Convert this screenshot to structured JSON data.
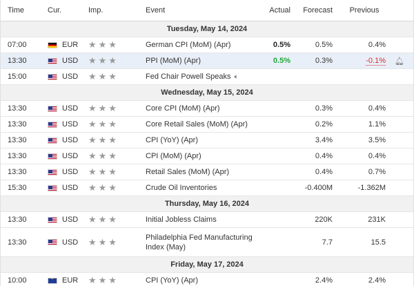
{
  "columns": {
    "time": "Time",
    "currency": "Cur.",
    "importance": "Imp.",
    "event": "Event",
    "actual": "Actual",
    "forecast": "Forecast",
    "previous": "Previous"
  },
  "stars": "★★★",
  "days": [
    {
      "label": "Tuesday, May 14, 2024",
      "events": [
        {
          "time": "07:00",
          "flag": "de",
          "currency": "EUR",
          "event": "German CPI (MoM) (Apr)",
          "actual": "0.5%",
          "forecast": "0.5%",
          "previous": "0.4%"
        },
        {
          "time": "13:30",
          "flag": "us",
          "currency": "USD",
          "event": "PPI (MoM) (Apr)",
          "actual": "0.5%",
          "forecast": "0.3%",
          "previous": "-0.1%"
        },
        {
          "time": "15:00",
          "flag": "us",
          "currency": "USD",
          "event": "Fed Chair Powell Speaks",
          "actual": "",
          "forecast": "",
          "previous": ""
        }
      ]
    },
    {
      "label": "Wednesday, May 15, 2024",
      "events": [
        {
          "time": "13:30",
          "flag": "us",
          "currency": "USD",
          "event": "Core CPI (MoM) (Apr)",
          "actual": "",
          "forecast": "0.3%",
          "previous": "0.4%"
        },
        {
          "time": "13:30",
          "flag": "us",
          "currency": "USD",
          "event": "Core Retail Sales (MoM) (Apr)",
          "actual": "",
          "forecast": "0.2%",
          "previous": "1.1%"
        },
        {
          "time": "13:30",
          "flag": "us",
          "currency": "USD",
          "event": "CPI (YoY) (Apr)",
          "actual": "",
          "forecast": "3.4%",
          "previous": "3.5%"
        },
        {
          "time": "13:30",
          "flag": "us",
          "currency": "USD",
          "event": "CPI (MoM) (Apr)",
          "actual": "",
          "forecast": "0.4%",
          "previous": "0.4%"
        },
        {
          "time": "13:30",
          "flag": "us",
          "currency": "USD",
          "event": "Retail Sales (MoM) (Apr)",
          "actual": "",
          "forecast": "0.4%",
          "previous": "0.7%"
        },
        {
          "time": "15:30",
          "flag": "us",
          "currency": "USD",
          "event": "Crude Oil Inventories",
          "actual": "",
          "forecast": "-0.400M",
          "previous": "-1.362M"
        }
      ]
    },
    {
      "label": "Thursday, May 16, 2024",
      "events": [
        {
          "time": "13:30",
          "flag": "us",
          "currency": "USD",
          "event": "Initial Jobless Claims",
          "actual": "",
          "forecast": "220K",
          "previous": "231K"
        },
        {
          "time": "13:30",
          "flag": "us",
          "currency": "USD",
          "event": "Philadelphia Fed Manufacturing Index (May)",
          "actual": "",
          "forecast": "7.7",
          "previous": "15.5"
        }
      ]
    },
    {
      "label": "Friday, May 17, 2024",
      "events": [
        {
          "time": "10:00",
          "flag": "eu",
          "currency": "EUR",
          "event": "CPI (YoY) (Apr)",
          "actual": "",
          "forecast": "2.4%",
          "previous": "2.4%"
        }
      ]
    }
  ]
}
